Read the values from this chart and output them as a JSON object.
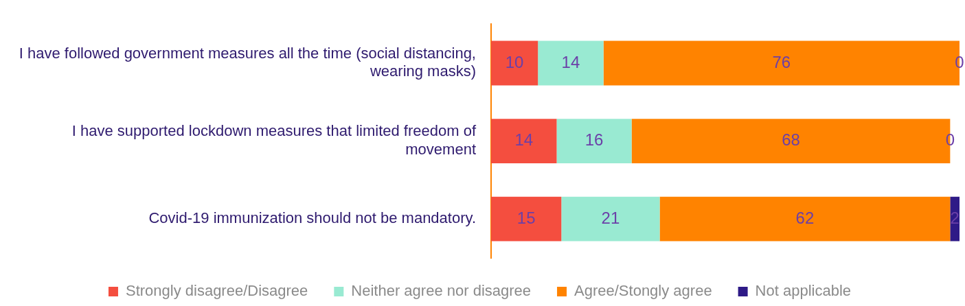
{
  "chart_data": {
    "type": "bar",
    "orientation": "horizontal",
    "stacked": true,
    "categories": [
      "I have followed government measures all the time (social distancing, wearing masks)",
      "I have supported lockdown measures that limited freedom of movement",
      "Covid-19 immunization should not be mandatory."
    ],
    "series": [
      {
        "name": "Strongly disagree/Disagree",
        "color": "#f44e3f",
        "values": [
          10,
          14,
          15
        ]
      },
      {
        "name": "Neither agree nor disagree",
        "color": "#99ead2",
        "values": [
          14,
          16,
          21
        ]
      },
      {
        "name": "Agree/Stongly agree",
        "color": "#ff8300",
        "values": [
          76,
          68,
          62
        ]
      },
      {
        "name": "Not applicable",
        "color": "#2e1a87",
        "values": [
          0,
          0,
          2
        ]
      }
    ],
    "xlim": [
      0,
      100
    ],
    "tick_labels": "y",
    "grid": false,
    "legend": "bottom",
    "data_labels": true
  }
}
